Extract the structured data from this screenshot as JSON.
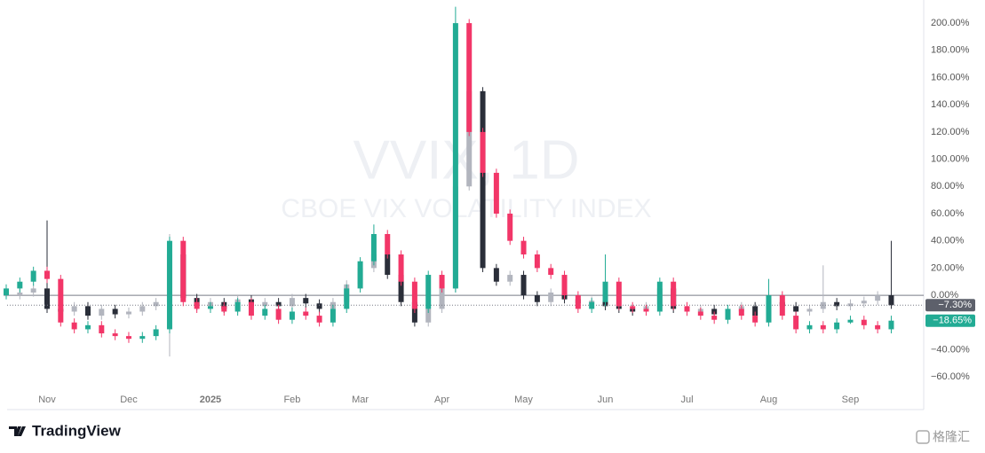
{
  "chart_data": {
    "type": "candlestick",
    "title": "VVIX, 1D",
    "subtitle": "CBOE VIX VOLATILITY INDEX",
    "brand": "TradingView",
    "source": "格隆汇",
    "categories": [
      null,
      null,
      null,
      "Nov",
      null,
      null,
      null,
      null,
      null,
      "Dec",
      null,
      null,
      null,
      null,
      null,
      "2025",
      null,
      null,
      null,
      null,
      null,
      "Feb",
      null,
      null,
      null,
      null,
      "Mar",
      null,
      null,
      null,
      null,
      null,
      "Apr",
      null,
      null,
      null,
      null,
      null,
      "May",
      null,
      null,
      null,
      null,
      null,
      "Jun",
      null,
      null,
      null,
      null,
      null,
      "Jul",
      null,
      null,
      null,
      null,
      null,
      "Aug",
      null,
      null,
      null,
      null,
      null,
      "Sep",
      null,
      null,
      null
    ],
    "ylim": [
      -84,
      217
    ],
    "yticks": [
      {
        "value": -60,
        "label": "−60.00%"
      },
      {
        "value": -40,
        "label": "−40.00%"
      },
      {
        "value": 0,
        "label": "0.00%"
      },
      {
        "value": 20,
        "label": "20.00%"
      },
      {
        "value": 40,
        "label": "40.00%"
      },
      {
        "value": 60,
        "label": "60.00%"
      },
      {
        "value": 80,
        "label": "80.00%"
      },
      {
        "value": 100,
        "label": "100.00%"
      },
      {
        "value": 120,
        "label": "120.00%"
      },
      {
        "value": 140,
        "label": "140.00%"
      },
      {
        "value": 160,
        "label": "160.00%"
      },
      {
        "value": 180,
        "label": "180.00%"
      },
      {
        "value": 200,
        "label": "200.00%"
      }
    ],
    "series": [
      {
        "up_color": "#b2b5be",
        "down_color": "#2a2e39",
        "badge_color": "#5d606b",
        "last_label": "−7.30%",
        "values": [
          [
            0,
            3,
            -3,
            0
          ],
          [
            0,
            5,
            -3,
            2
          ],
          [
            2,
            8,
            -1,
            5
          ],
          [
            5,
            55,
            -13,
            -10
          ],
          [
            -10,
            -7,
            -15,
            -12
          ],
          [
            -12,
            -5,
            -15,
            -8
          ],
          [
            -8,
            -5,
            -18,
            -15
          ],
          [
            -15,
            -7,
            -18,
            -10
          ],
          [
            -10,
            -7,
            -17,
            -14
          ],
          [
            -14,
            -9,
            -17,
            -12
          ],
          [
            -12,
            -5,
            -15,
            -8
          ],
          [
            -8,
            -2,
            -11,
            -5
          ],
          [
            -5,
            45,
            -45,
            30
          ],
          [
            30,
            33,
            -5,
            -2
          ],
          [
            -2,
            1,
            -11,
            -8
          ],
          [
            -8,
            -2,
            -11,
            -5
          ],
          [
            -5,
            -2,
            -13,
            -10
          ],
          [
            -10,
            0,
            -13,
            -3
          ],
          [
            -3,
            0,
            -11,
            -8
          ],
          [
            -8,
            -2,
            -11,
            -5
          ],
          [
            -5,
            -2,
            -11,
            -8
          ],
          [
            -8,
            1,
            -11,
            -2
          ],
          [
            -2,
            1,
            -9,
            -6
          ],
          [
            -6,
            -3,
            -13,
            -10
          ],
          [
            -10,
            -2,
            -13,
            -5
          ],
          [
            -5,
            11,
            -8,
            8
          ],
          [
            8,
            23,
            5,
            20
          ],
          [
            20,
            33,
            17,
            30
          ],
          [
            30,
            33,
            12,
            15
          ],
          [
            15,
            18,
            -8,
            -5
          ],
          [
            -5,
            -2,
            -23,
            -20
          ],
          [
            -20,
            -7,
            -23,
            -10
          ],
          [
            -10,
            8,
            -13,
            5
          ],
          [
            5,
            83,
            2,
            80
          ],
          [
            80,
            180,
            77,
            150
          ],
          [
            150,
            153,
            17,
            20
          ],
          [
            20,
            23,
            7,
            10
          ],
          [
            10,
            18,
            7,
            15
          ],
          [
            15,
            18,
            -3,
            0
          ],
          [
            0,
            3,
            -8,
            -5
          ],
          [
            -5,
            5,
            -8,
            2
          ],
          [
            2,
            5,
            -6,
            -3
          ],
          [
            -3,
            0,
            -9,
            -6
          ],
          [
            -6,
            -1,
            -9,
            -4
          ],
          [
            -4,
            -1,
            -11,
            -8
          ],
          [
            -8,
            -5,
            -13,
            -10
          ],
          [
            -10,
            -7,
            -15,
            -12
          ],
          [
            -12,
            -5,
            -15,
            -8
          ],
          [
            -8,
            8,
            -11,
            5
          ],
          [
            5,
            8,
            -13,
            -10
          ],
          [
            -10,
            -7,
            -15,
            -12
          ],
          [
            -12,
            -7,
            -15,
            -10
          ],
          [
            -10,
            -7,
            -17,
            -14
          ],
          [
            -14,
            -9,
            -17,
            -12
          ],
          [
            -12,
            -5,
            -15,
            -8
          ],
          [
            -8,
            -5,
            -18,
            -15
          ],
          [
            -15,
            -2,
            -18,
            -5
          ],
          [
            -5,
            -2,
            -11,
            -8
          ],
          [
            -8,
            -5,
            -15,
            -12
          ],
          [
            -12,
            -7,
            -15,
            -10
          ],
          [
            -10,
            22,
            -13,
            -5
          ],
          [
            -5,
            -2,
            -11,
            -8
          ],
          [
            -8,
            -3,
            -11,
            -6
          ],
          [
            -6,
            -1,
            -9,
            -4
          ],
          [
            -4,
            3,
            -7,
            0
          ],
          [
            0,
            40,
            -10,
            -7.3
          ]
        ]
      },
      {
        "up_color": "#22ab94",
        "down_color": "#f23668",
        "badge_color": "#22ab94",
        "last_label": "−18.65%",
        "values": [
          [
            0,
            8,
            -3,
            5
          ],
          [
            5,
            13,
            2,
            10
          ],
          [
            10,
            21,
            7,
            18
          ],
          [
            18,
            21,
            9,
            12
          ],
          [
            12,
            15,
            -23,
            -20
          ],
          [
            -20,
            -17,
            -28,
            -25
          ],
          [
            -25,
            -19,
            -28,
            -22
          ],
          [
            -22,
            -19,
            -31,
            -28
          ],
          [
            -28,
            -25,
            -33,
            -30
          ],
          [
            -30,
            -27,
            -35,
            -32
          ],
          [
            -32,
            -27,
            -35,
            -30
          ],
          [
            -30,
            -22,
            -33,
            -25
          ],
          [
            -25,
            43,
            -28,
            40
          ],
          [
            40,
            43,
            -8,
            -5
          ],
          [
            -5,
            -2,
            -13,
            -10
          ],
          [
            -10,
            -5,
            -13,
            -8
          ],
          [
            -8,
            -5,
            -15,
            -12
          ],
          [
            -12,
            -2,
            -15,
            -5
          ],
          [
            -5,
            -2,
            -18,
            -15
          ],
          [
            -15,
            -7,
            -18,
            -10
          ],
          [
            -10,
            -7,
            -21,
            -18
          ],
          [
            -18,
            -9,
            -21,
            -12
          ],
          [
            -12,
            -9,
            -18,
            -15
          ],
          [
            -15,
            -12,
            -23,
            -20
          ],
          [
            -20,
            -7,
            -23,
            -10
          ],
          [
            -10,
            8,
            -13,
            5
          ],
          [
            5,
            28,
            2,
            25
          ],
          [
            25,
            52,
            22,
            45
          ],
          [
            45,
            48,
            27,
            30
          ],
          [
            30,
            33,
            7,
            10
          ],
          [
            10,
            13,
            -13,
            -10
          ],
          [
            -10,
            18,
            -13,
            15
          ],
          [
            15,
            18,
            2,
            5
          ],
          [
            5,
            212,
            2,
            200
          ],
          [
            200,
            203,
            117,
            120
          ],
          [
            120,
            123,
            87,
            90
          ],
          [
            90,
            93,
            57,
            60
          ],
          [
            60,
            63,
            37,
            40
          ],
          [
            40,
            43,
            27,
            30
          ],
          [
            30,
            33,
            17,
            20
          ],
          [
            20,
            23,
            12,
            15
          ],
          [
            15,
            18,
            -3,
            0
          ],
          [
            0,
            3,
            -13,
            -10
          ],
          [
            -10,
            -2,
            -13,
            -5
          ],
          [
            -5,
            30,
            -8,
            10
          ],
          [
            10,
            13,
            -11,
            -8
          ],
          [
            -8,
            -5,
            -13,
            -10
          ],
          [
            -10,
            -7,
            -15,
            -12
          ],
          [
            -12,
            13,
            -15,
            10
          ],
          [
            10,
            13,
            -11,
            -8
          ],
          [
            -8,
            -5,
            -15,
            -12
          ],
          [
            -12,
            -9,
            -18,
            -15
          ],
          [
            -15,
            -12,
            -21,
            -18
          ],
          [
            -18,
            -7,
            -21,
            -10
          ],
          [
            -10,
            -7,
            -18,
            -15
          ],
          [
            -15,
            -12,
            -23,
            -20
          ],
          [
            -20,
            12,
            -23,
            0
          ],
          [
            0,
            3,
            -18,
            -15
          ],
          [
            -15,
            -12,
            -28,
            -25
          ],
          [
            -25,
            -19,
            -28,
            -22
          ],
          [
            -22,
            -19,
            -28,
            -25
          ],
          [
            -25,
            -17,
            -28,
            -20
          ],
          [
            -20,
            -15,
            -21,
            -18
          ],
          [
            -18,
            -15,
            -25,
            -22
          ],
          [
            -22,
            -19,
            -28,
            -25
          ],
          [
            -25,
            -15,
            -28,
            -18.65
          ]
        ]
      }
    ]
  }
}
